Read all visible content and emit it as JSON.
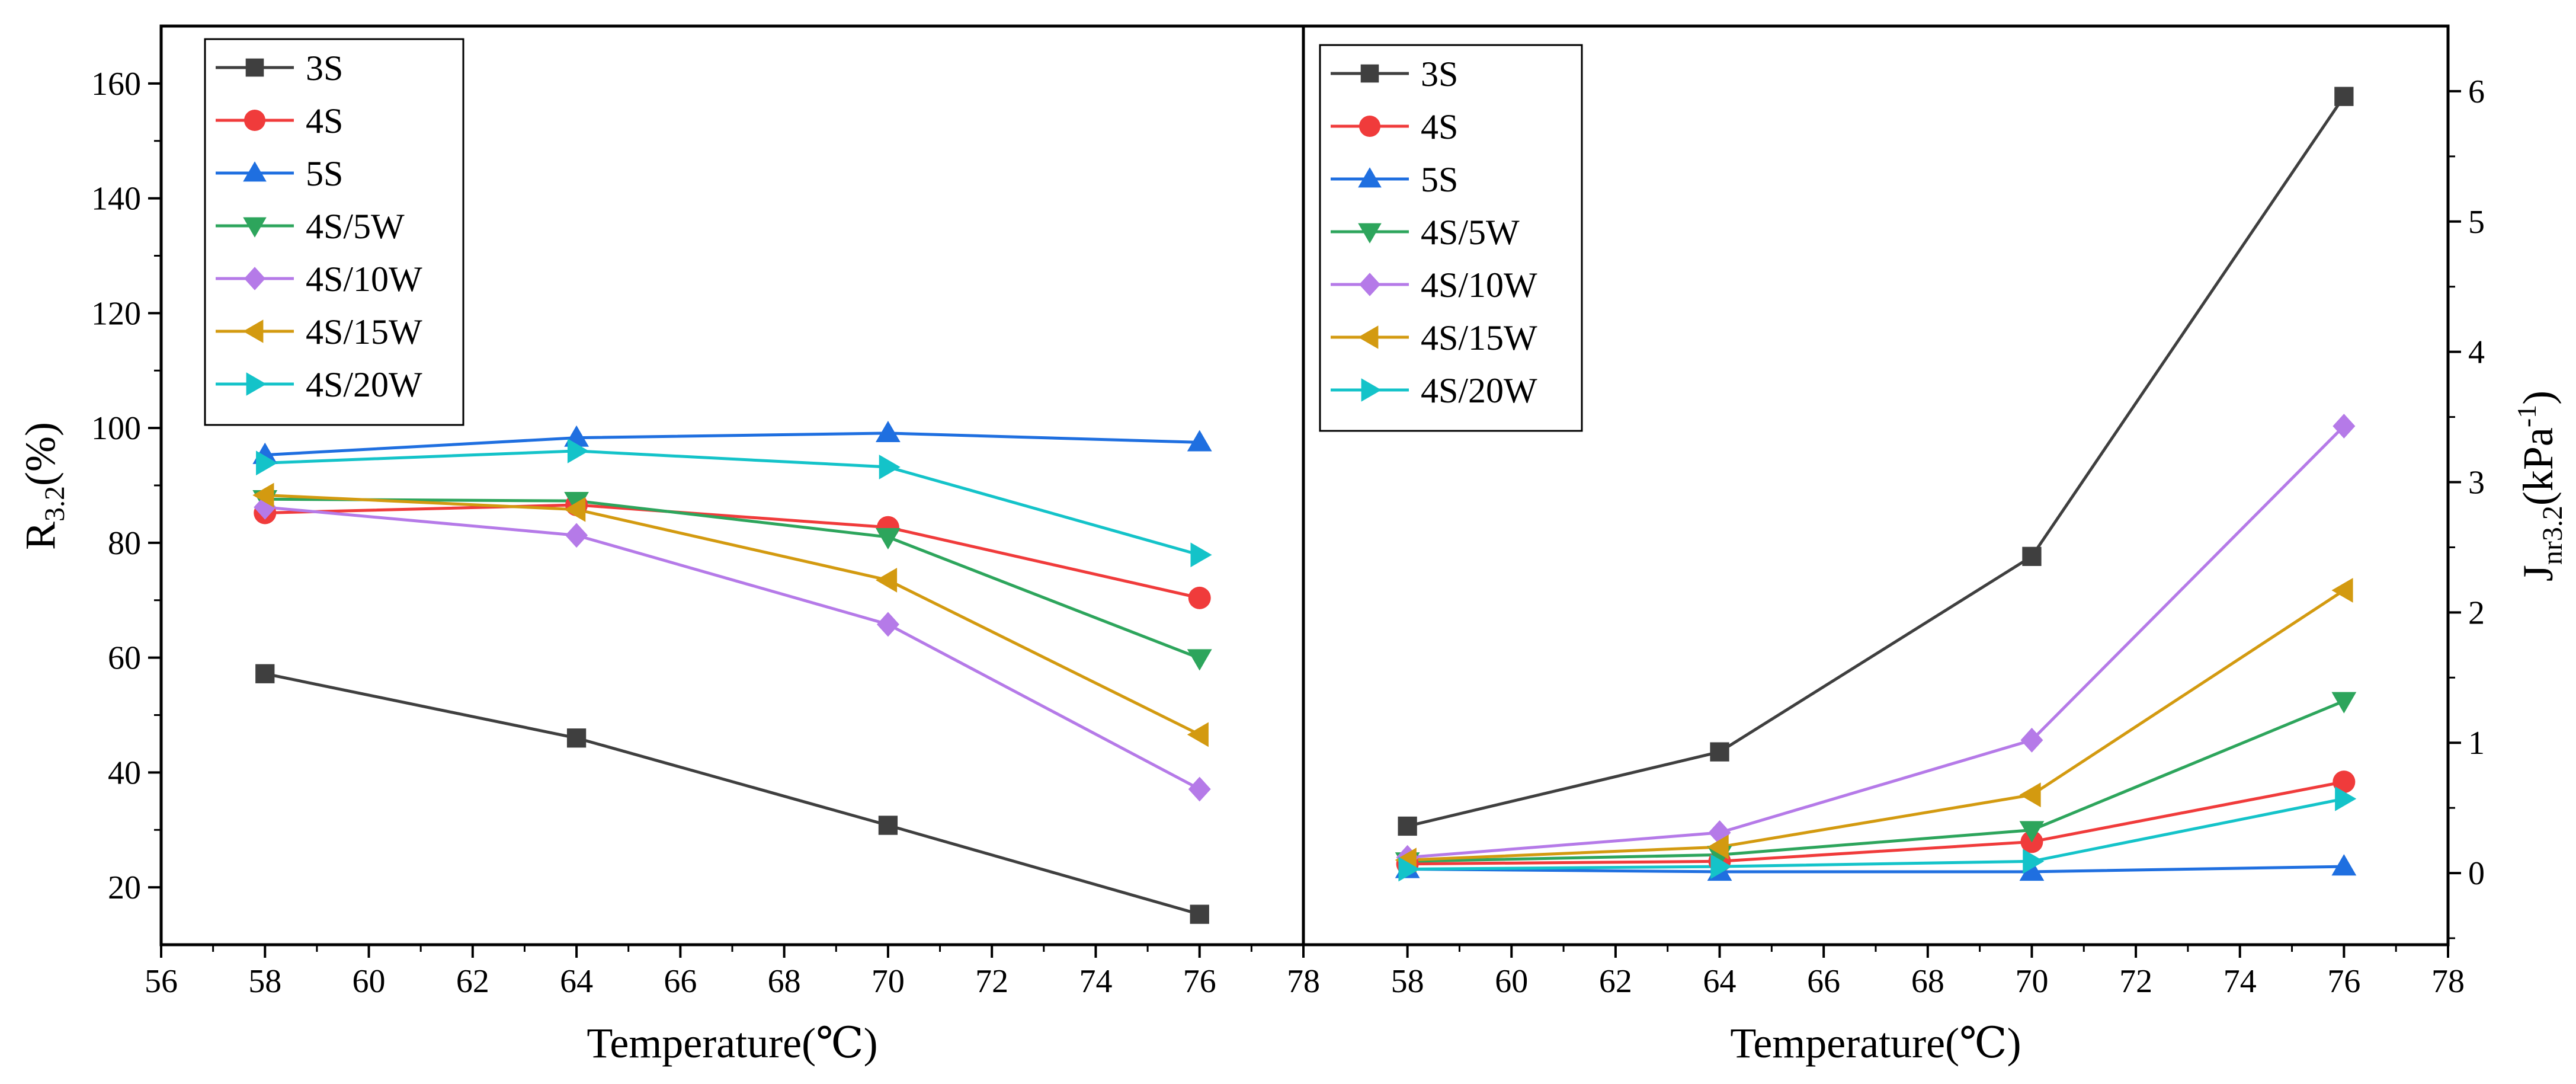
{
  "chart_data": [
    {
      "type": "line",
      "panel": "left",
      "xlabel": "Temperature(℃)",
      "ylabel": {
        "base": "R",
        "sub": "3.2",
        "suffix": "(%)"
      },
      "xlim": [
        56,
        78
      ],
      "ylim": [
        10,
        170
      ],
      "xticks": [
        56,
        58,
        60,
        62,
        64,
        66,
        68,
        70,
        72,
        74,
        76,
        78
      ],
      "yticks": [
        20,
        40,
        60,
        80,
        100,
        120,
        140,
        160
      ],
      "x": [
        58,
        64,
        70,
        76
      ],
      "legend": "top-left",
      "series": [
        {
          "name": "3S",
          "color": "#3f3f3f",
          "marker": "square",
          "values": [
            57.2,
            46.0,
            30.8,
            15.3
          ]
        },
        {
          "name": "4S",
          "color": "#f03b3b",
          "marker": "circle",
          "values": [
            85.2,
            86.6,
            82.7,
            70.4
          ]
        },
        {
          "name": "5S",
          "color": "#1f6fe0",
          "marker": "triangle-up",
          "values": [
            95.3,
            98.3,
            99.1,
            97.5
          ]
        },
        {
          "name": "4S/5W",
          "color": "#2da55c",
          "marker": "triangle-down",
          "values": [
            87.6,
            87.3,
            81.0,
            59.9
          ]
        },
        {
          "name": "4S/10W",
          "color": "#b57ae8",
          "marker": "diamond",
          "values": [
            86.2,
            81.3,
            65.8,
            37.1
          ]
        },
        {
          "name": "4S/15W",
          "color": "#d39a10",
          "marker": "triangle-left",
          "values": [
            88.3,
            85.8,
            73.5,
            46.6
          ]
        },
        {
          "name": "4S/20W",
          "color": "#14c3c9",
          "marker": "triangle-right",
          "values": [
            93.9,
            96.0,
            93.2,
            77.9
          ]
        }
      ]
    },
    {
      "type": "line",
      "panel": "right",
      "xlabel": "Temperature(℃)",
      "ylabel": {
        "base": "J",
        "sub": "nr3.2",
        "suffix": "(kPa",
        "sup": "-1",
        "close": ")"
      },
      "xlim": [
        56,
        78
      ],
      "ylim": [
        -0.55,
        6.5
      ],
      "xticks": [
        58,
        60,
        62,
        64,
        66,
        68,
        70,
        72,
        74,
        76,
        78
      ],
      "yticks": [
        0,
        1,
        2,
        3,
        4,
        5,
        6
      ],
      "x": [
        58,
        64,
        70,
        76
      ],
      "legend": "top-left",
      "series": [
        {
          "name": "3S",
          "color": "#3f3f3f",
          "marker": "square",
          "values": [
            0.36,
            0.93,
            2.43,
            5.96
          ]
        },
        {
          "name": "4S",
          "color": "#f03b3b",
          "marker": "circle",
          "values": [
            0.07,
            0.09,
            0.24,
            0.7
          ]
        },
        {
          "name": "5S",
          "color": "#1f6fe0",
          "marker": "triangle-up",
          "values": [
            0.03,
            0.01,
            0.01,
            0.05
          ]
        },
        {
          "name": "4S/5W",
          "color": "#2da55c",
          "marker": "triangle-down",
          "values": [
            0.09,
            0.14,
            0.33,
            1.32
          ]
        },
        {
          "name": "4S/10W",
          "color": "#b57ae8",
          "marker": "diamond",
          "values": [
            0.12,
            0.31,
            1.02,
            3.43
          ]
        },
        {
          "name": "4S/15W",
          "color": "#d39a10",
          "marker": "triangle-left",
          "values": [
            0.1,
            0.2,
            0.6,
            2.17
          ]
        },
        {
          "name": "4S/20W",
          "color": "#14c3c9",
          "marker": "triangle-right",
          "values": [
            0.03,
            0.05,
            0.09,
            0.57
          ]
        }
      ]
    }
  ]
}
